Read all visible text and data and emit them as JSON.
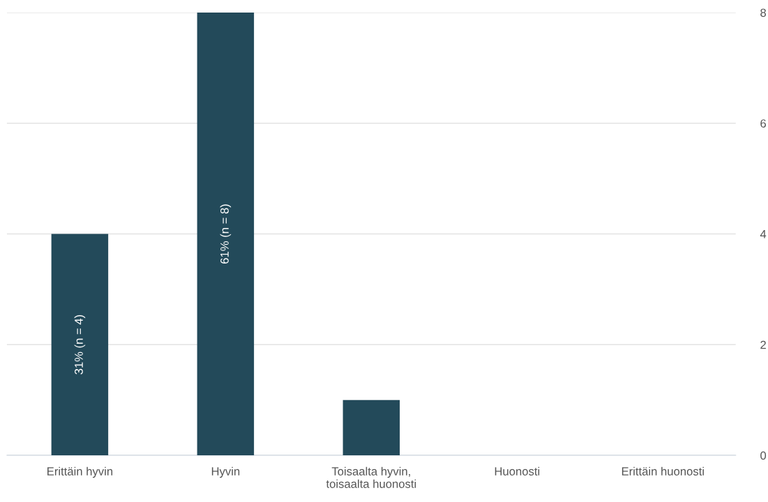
{
  "chart_data": {
    "type": "bar",
    "categories": [
      "Erittäin hyvin",
      "Hyvin",
      "Toisaalta hyvin,\ntoisaalta huonosti",
      "Huonosti",
      "Erittäin huonosti"
    ],
    "values": [
      4,
      8,
      1,
      0,
      0
    ],
    "value_labels": [
      "31% (n = 4)",
      "61% (n = 8)",
      null,
      null,
      null
    ],
    "color": "#234a5a",
    "ylim": [
      0,
      8
    ],
    "yticks": [
      0,
      2,
      4,
      6,
      8
    ],
    "grid": "y",
    "legend": false
  }
}
